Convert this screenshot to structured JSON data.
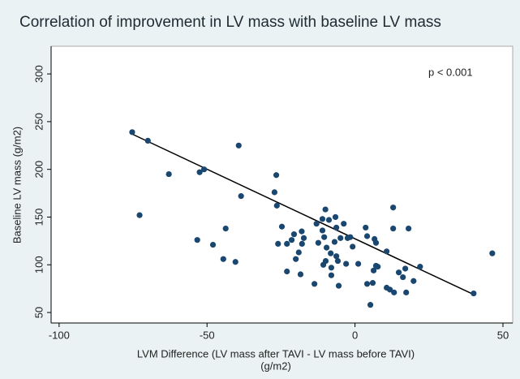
{
  "chart_data": {
    "type": "scatter",
    "title": "Correlation of improvement in LV mass with baseline LV mass",
    "xlabel": [
      "LVM Difference (LV mass after TAVI - LV mass before TAVI)",
      "(g/m2)"
    ],
    "ylabel": "Baseline LV mass (g/m2)",
    "annotation": "p < 0.001",
    "color": "#1a476f",
    "line_color": "#000000",
    "grid": false,
    "xlim": [
      -102.7,
      53.3
    ],
    "xticks": [
      -100,
      -50,
      0,
      50
    ],
    "ylim": [
      39,
      329
    ],
    "yticks": [
      50,
      100,
      150,
      200,
      250,
      300
    ],
    "x": [
      -75.3,
      -70,
      -72.8,
      -62.9,
      -52.5,
      -51,
      -39.3,
      -38.5,
      -53.3,
      -48,
      -43.7,
      -44.5,
      -40.4,
      -26.6,
      -27.2,
      -26.4,
      -24.7,
      -26,
      -23,
      -23,
      -21.4,
      -20.6,
      -20,
      -19,
      -18,
      -17.9,
      -17.3,
      -18.4,
      -13,
      -12.4,
      -13.7,
      -11,
      -10,
      -11,
      -10.4,
      -9.6,
      -9.9,
      -10.7,
      -8.8,
      -8.2,
      -8,
      -8,
      -6.6,
      -6.3,
      -6.9,
      -6.3,
      -5.8,
      -5.5,
      -4.9,
      -3.8,
      -3,
      -2.5,
      -1.6,
      -0.8,
      1.1,
      3.6,
      4.1,
      4.1,
      5.2,
      6,
      6.3,
      7.1,
      6.6,
      7.1,
      7.7,
      10.7,
      10.7,
      11.8,
      13.2,
      12.9,
      12.9,
      14.8,
      16.2,
      17,
      17.3,
      18.1,
      19.8,
      22,
      40.1,
      46.4
    ],
    "values": [
      239,
      230,
      152,
      195,
      197,
      200,
      225,
      172,
      126,
      121,
      138,
      106,
      103,
      194,
      176,
      162,
      140,
      122,
      122,
      93,
      126,
      132,
      106,
      113,
      135,
      122,
      128,
      90,
      143,
      123,
      80,
      136,
      158,
      148,
      129,
      118,
      104,
      100,
      147,
      112,
      97,
      89,
      150,
      139,
      124,
      109,
      104,
      78,
      128,
      143,
      101,
      128,
      129,
      119,
      101,
      139,
      130,
      80,
      58,
      81,
      94,
      99,
      127,
      123,
      98,
      114,
      76,
      74,
      71,
      138,
      160,
      92,
      87,
      96,
      71,
      138,
      83,
      98,
      70,
      112
    ],
    "trend_line": {
      "x": [
        -76,
        40
      ],
      "y": [
        238,
        69
      ]
    }
  }
}
